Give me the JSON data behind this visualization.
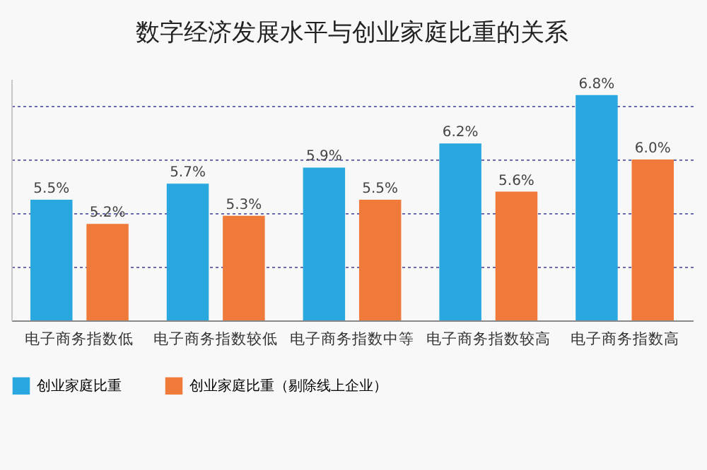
{
  "chart_data": {
    "type": "bar",
    "title": "数字经济发展水平与创业家庭比重的关系",
    "categories": [
      "电子商务指数低",
      "电子商务指数较低",
      "电子商务指数中等",
      "电子商务指数较高",
      "电子商务指数高"
    ],
    "series": [
      {
        "name": "创业家庭比重",
        "color": "#29a8e0",
        "values": [
          5.5,
          5.7,
          5.9,
          6.2,
          6.8
        ],
        "value_labels": [
          "5.5%",
          "5.7%",
          "5.9%",
          "6.2%",
          "6.8%"
        ]
      },
      {
        "name": "创业家庭比重（剔除线上企业）",
        "color": "#f07a3a",
        "values": [
          5.2,
          5.3,
          5.5,
          5.6,
          6.0
        ],
        "value_labels": [
          "5.2%",
          "5.3%",
          "5.5%",
          "5.6%",
          "6.0%"
        ]
      }
    ],
    "ylim": [
      4,
      7
    ],
    "yticks": [
      {
        "value": 4.67,
        "label": null
      },
      {
        "value": 5.33,
        "label": null
      },
      {
        "value": 6,
        "label": null
      },
      {
        "value": 6.67,
        "label": null
      }
    ],
    "grid": "y",
    "legend": "bottom",
    "tick_labels": "x"
  }
}
